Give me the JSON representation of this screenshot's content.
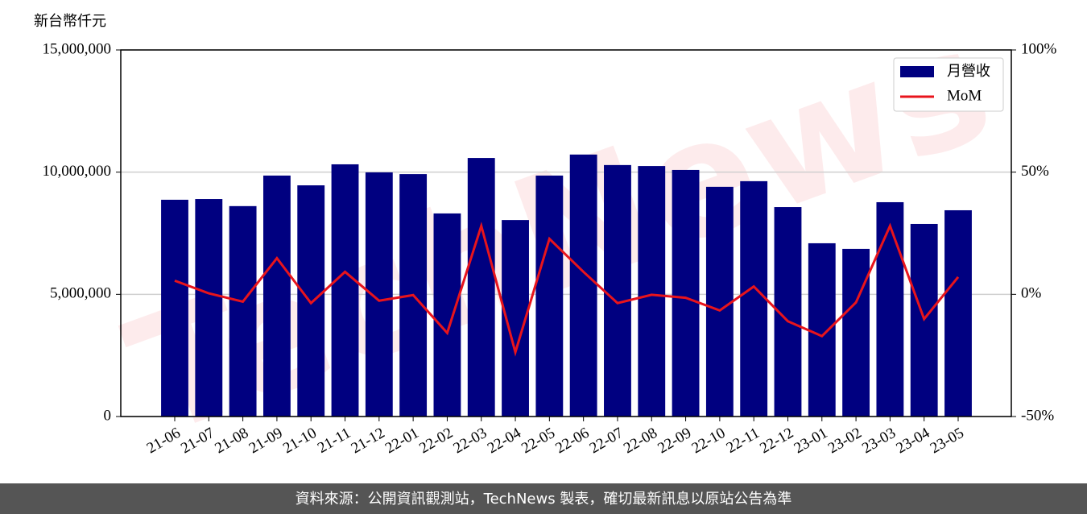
{
  "chart_data": {
    "type": "bar",
    "y_label": "新台幣仟元",
    "watermark": "TechNews",
    "footer": "資料來源：公開資訊觀測站，TechNews 製表，確切最新訊息以原站公告為準",
    "categories": [
      "21-06",
      "21-07",
      "21-08",
      "21-09",
      "21-10",
      "21-11",
      "21-12",
      "22-01",
      "22-02",
      "22-03",
      "22-04",
      "22-05",
      "22-06",
      "22-07",
      "22-08",
      "22-09",
      "22-10",
      "22-11",
      "22-12",
      "23-01",
      "23-02",
      "23-03",
      "23-04",
      "23-05"
    ],
    "series": [
      {
        "name": "月營收",
        "type": "bar",
        "color": "#000080",
        "values": [
          8870000,
          8900000,
          8610000,
          9860000,
          9460000,
          10320000,
          9990000,
          9920000,
          8310000,
          10580000,
          8040000,
          9860000,
          10720000,
          10290000,
          10250000,
          10090000,
          9400000,
          9630000,
          8570000,
          7090000,
          6860000,
          8770000,
          7880000,
          8440000
        ]
      },
      {
        "name": "MoM",
        "type": "line",
        "axis": "y2",
        "color": "#e8141c",
        "values": [
          5.6,
          0.4,
          -3.0,
          14.8,
          -3.6,
          9.2,
          -2.6,
          -0.3,
          -15.8,
          28.0,
          -23.7,
          22.7,
          9.2,
          -3.6,
          -0.2,
          -1.4,
          -6.6,
          3.2,
          -11.0,
          -17.1,
          -3.3,
          28.0,
          -10.1,
          7.1
        ]
      }
    ],
    "ylim": [
      0,
      15000000
    ],
    "yticks": [
      0,
      {
        "value": 5000000,
        "label": "5,000,000"
      },
      {
        "value": 10000000,
        "label": "10,000,000"
      },
      {
        "value": 15000000,
        "label": "15,000,000"
      }
    ],
    "y2lim": [
      -50,
      100
    ],
    "y2ticks": [
      {
        "value": -50,
        "label": "-50%"
      },
      {
        "value": 0,
        "label": "0%"
      },
      {
        "value": 50,
        "label": "50%"
      },
      {
        "value": 100,
        "label": "100%"
      }
    ],
    "grid": true,
    "legend": "upper right"
  }
}
